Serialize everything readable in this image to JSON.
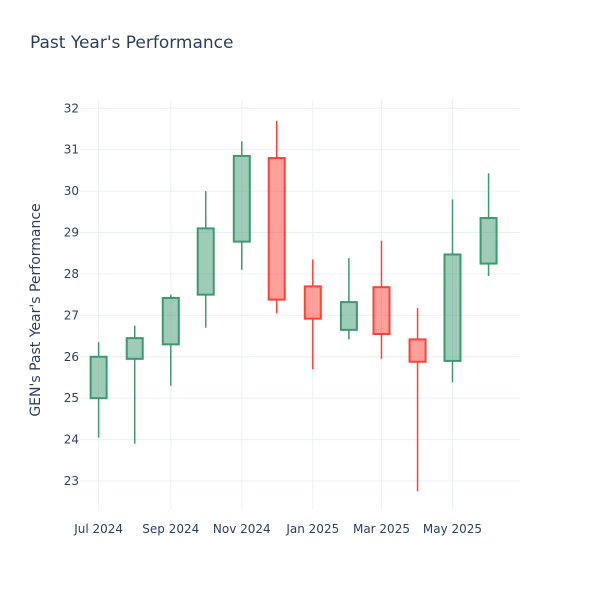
{
  "chart_data": {
    "type": "candlestick",
    "title": "Past Year's Performance",
    "xlabel": "",
    "ylabel": "GEN's Past Year's Performance",
    "ylim": [
      22.3,
      32.2
    ],
    "y_ticks": [
      23,
      24,
      25,
      26,
      27,
      28,
      29,
      30,
      31,
      32
    ],
    "x_range": [
      "2024-06-15",
      "2025-06-28"
    ],
    "x_ticks": [
      {
        "date": "2024-07-01",
        "label": "Jul 2024"
      },
      {
        "date": "2024-09-01",
        "label": "Sep 2024"
      },
      {
        "date": "2024-11-01",
        "label": "Nov 2024"
      },
      {
        "date": "2025-01-01",
        "label": "Jan 2025"
      },
      {
        "date": "2025-03-01",
        "label": "Mar 2025"
      },
      {
        "date": "2025-05-01",
        "label": "May 2025"
      }
    ],
    "grid": true,
    "colors": {
      "increasing": "#3d9970",
      "decreasing": "#ff4136",
      "increasing_fill": "rgba(61,153,112,0.5)",
      "decreasing_fill": "rgba(255,65,54,0.5)"
    },
    "candles": [
      {
        "date": "2024-07-01",
        "open": 25.0,
        "high": 26.35,
        "low": 24.05,
        "close": 26.0
      },
      {
        "date": "2024-08-01",
        "open": 25.95,
        "high": 26.75,
        "low": 23.9,
        "close": 26.45
      },
      {
        "date": "2024-09-01",
        "open": 26.3,
        "high": 27.5,
        "low": 25.3,
        "close": 27.42
      },
      {
        "date": "2024-10-01",
        "open": 27.5,
        "high": 30.0,
        "low": 26.7,
        "close": 29.1
      },
      {
        "date": "2024-11-01",
        "open": 28.78,
        "high": 31.2,
        "low": 28.1,
        "close": 30.85
      },
      {
        "date": "2024-12-01",
        "open": 30.8,
        "high": 31.7,
        "low": 27.05,
        "close": 27.38
      },
      {
        "date": "2025-01-01",
        "open": 27.7,
        "high": 28.35,
        "low": 25.7,
        "close": 26.92
      },
      {
        "date": "2025-02-01",
        "open": 26.65,
        "high": 28.38,
        "low": 26.42,
        "close": 27.32
      },
      {
        "date": "2025-03-01",
        "open": 27.68,
        "high": 28.8,
        "low": 25.95,
        "close": 26.55
      },
      {
        "date": "2025-04-01",
        "open": 26.42,
        "high": 27.18,
        "low": 22.75,
        "close": 25.88
      },
      {
        "date": "2025-05-01",
        "open": 25.9,
        "high": 29.8,
        "low": 25.38,
        "close": 28.47
      },
      {
        "date": "2025-06-01",
        "open": 28.25,
        "high": 30.43,
        "low": 27.95,
        "close": 29.35
      }
    ]
  }
}
